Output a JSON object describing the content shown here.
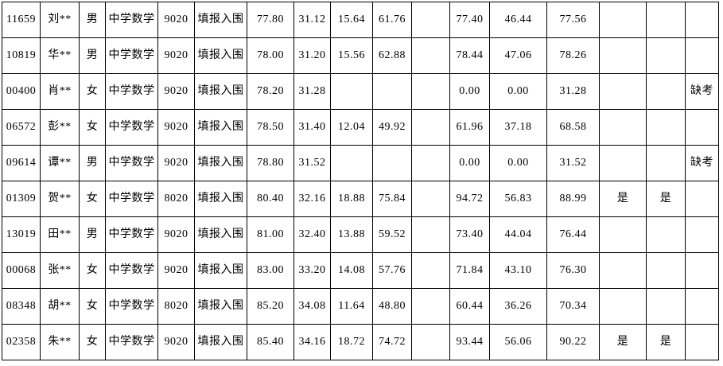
{
  "table": {
    "description_note": "",
    "rows": [
      [
        "11659",
        "刘**",
        "男",
        "中学数学",
        "9020",
        "填报入围",
        "77.80",
        "31.12",
        "15.64",
        "61.76",
        "",
        "77.40",
        "46.44",
        "77.56",
        "",
        "",
        ""
      ],
      [
        "10819",
        "华**",
        "男",
        "中学数学",
        "9020",
        "填报入围",
        "78.00",
        "31.20",
        "15.56",
        "62.88",
        "",
        "78.44",
        "47.06",
        "78.26",
        "",
        "",
        ""
      ],
      [
        "00400",
        "肖**",
        "女",
        "中学数学",
        "9020",
        "填报入围",
        "78.20",
        "31.28",
        "",
        "",
        "",
        "0.00",
        "0.00",
        "31.28",
        "",
        "",
        "缺考"
      ],
      [
        "06572",
        "彭**",
        "女",
        "中学数学",
        "9020",
        "填报入围",
        "78.50",
        "31.40",
        "12.04",
        "49.92",
        "",
        "61.96",
        "37.18",
        "68.58",
        "",
        "",
        ""
      ],
      [
        "09614",
        "谭**",
        "男",
        "中学数学",
        "9020",
        "填报入围",
        "78.80",
        "31.52",
        "",
        "",
        "",
        "0.00",
        "0.00",
        "31.52",
        "",
        "",
        "缺考"
      ],
      [
        "01309",
        "贺**",
        "女",
        "中学数学",
        "8020",
        "填报入围",
        "80.40",
        "32.16",
        "18.88",
        "75.84",
        "",
        "94.72",
        "56.83",
        "88.99",
        "是",
        "是",
        ""
      ],
      [
        "13019",
        "田**",
        "男",
        "中学数学",
        "9020",
        "填报入围",
        "81.00",
        "32.40",
        "13.88",
        "59.52",
        "",
        "73.40",
        "44.04",
        "76.44",
        "",
        "",
        ""
      ],
      [
        "00068",
        "张**",
        "女",
        "中学数学",
        "9020",
        "填报入围",
        "83.00",
        "33.20",
        "14.08",
        "57.76",
        "",
        "71.84",
        "43.10",
        "76.30",
        "",
        "",
        ""
      ],
      [
        "08348",
        "胡**",
        "女",
        "中学数学",
        "8020",
        "填报入围",
        "85.20",
        "34.08",
        "11.64",
        "48.80",
        "",
        "60.44",
        "36.26",
        "70.34",
        "",
        "",
        ""
      ],
      [
        "02358",
        "朱**",
        "女",
        "中学数学",
        "9020",
        "填报入围",
        "85.40",
        "34.16",
        "18.72",
        "74.72",
        "",
        "93.44",
        "56.06",
        "90.22",
        "是",
        "是",
        ""
      ]
    ]
  },
  "colors": {
    "background": "#ffffff",
    "grid_line": "#000000",
    "text": "#000000"
  }
}
